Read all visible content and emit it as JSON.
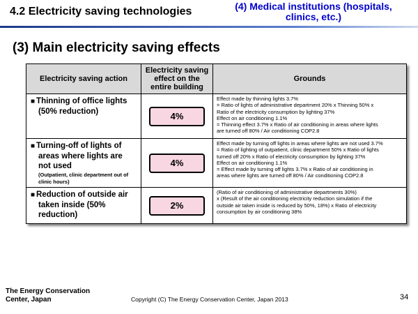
{
  "header": {
    "title": "4.2 Electricity saving technologies",
    "subtitle_line1": "(4) Medical institutions (hospitals,",
    "subtitle_line2": "clinics, etc.)"
  },
  "section_title": "(3) Main electricity saving effects",
  "table": {
    "headers": {
      "action": "Electricity saving action",
      "effect_line1": "Electricity saving",
      "effect_line2": "effect on the",
      "effect_line3": "entire building",
      "grounds": "Grounds"
    },
    "rows": [
      {
        "bullet": "■",
        "action_lines": [
          "Thinning of office lights",
          "(50% reduction)"
        ],
        "note": "",
        "effect": "4%",
        "grounds": [
          "Effect made by thinning lights 3.7%",
          "= Ratio of lights of administrative department 20% x Thinning 50% x",
          "Ratio of the electricity consumption by lighting 37%",
          "Effect on air conditioning 1.1%",
          "= Thinning effect 3.7% x Ratio of air conditioning in areas where lights",
          "are turned off 80% / Air conditioning COP2.8"
        ]
      },
      {
        "bullet": "■",
        "action_lines": [
          "Turning-off of lights of",
          "areas where lights are",
          "not used"
        ],
        "note": "(Outpatient, clinic department out of clinic hours)",
        "effect": "4%",
        "grounds": [
          "Effect made by turning off lights in areas where lights are not used 3.7%",
          "= Ratio of lighting of outpatient, clinic department 50% x Ratio of lights",
          "turned off 20% x Ratio of electricity consumption by lighting 37%",
          "Effect on air conditioning 1.1%",
          "= Effect made by turning off lights 3.7% x Ratio of air conditioning in",
          "areas where lights are turned off 80% / Air conditioning COP2.8"
        ]
      },
      {
        "bullet": "■",
        "action_lines": [
          "Reduction of outside air",
          "taken inside (50%",
          "reduction)"
        ],
        "note": "",
        "effect": "2%",
        "grounds": [
          "(Ratio of air conditioning of administrative departments 30%)",
          "x (Result of the air conditioning electricity reduction simulation if the",
          "outside air taken inside is reduced by 50%, 18%) x Ratio of electricity",
          "consumption by air conditioning 38%"
        ]
      }
    ]
  },
  "footer": {
    "org_line1": "The Energy Conservation",
    "org_line2": "Center, Japan",
    "copyright": "Copyright (C) The Energy Conservation Center, Japan 2013",
    "page_number": "34"
  }
}
